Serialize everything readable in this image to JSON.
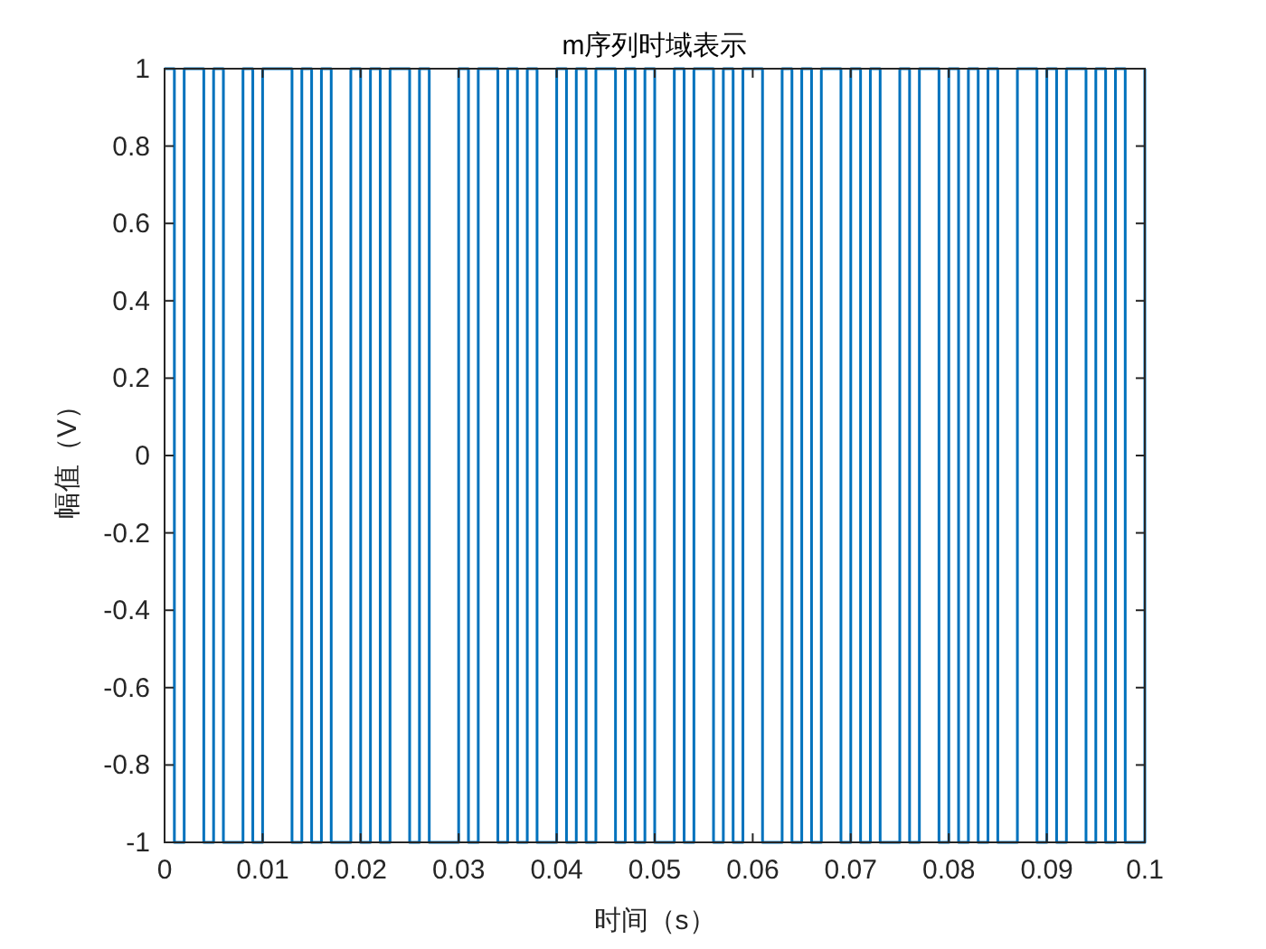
{
  "chart_data": {
    "type": "step",
    "title": "m序列时域表示",
    "xlabel": "时间（s）",
    "ylabel": "幅值（V）",
    "x": [
      0,
      0.001,
      0.002,
      0.003,
      0.004,
      0.005,
      0.006,
      0.007,
      0.008,
      0.009,
      0.01,
      0.011,
      0.012,
      0.013,
      0.014,
      0.015,
      0.016,
      0.017,
      0.018,
      0.019,
      0.02,
      0.021,
      0.022,
      0.023,
      0.024,
      0.025,
      0.026,
      0.027,
      0.028,
      0.029,
      0.03,
      0.031,
      0.032,
      0.033,
      0.034,
      0.035,
      0.036,
      0.037,
      0.038,
      0.039,
      0.04,
      0.041,
      0.042,
      0.043,
      0.044,
      0.045,
      0.046,
      0.047,
      0.048,
      0.049,
      0.05,
      0.051,
      0.052,
      0.053,
      0.054,
      0.055,
      0.056,
      0.057,
      0.058,
      0.059,
      0.06,
      0.061,
      0.062,
      0.063,
      0.064,
      0.065,
      0.066,
      0.067,
      0.068,
      0.069,
      0.07,
      0.071,
      0.072,
      0.073,
      0.074,
      0.075,
      0.076,
      0.077,
      0.078,
      0.079,
      0.08,
      0.081,
      0.082,
      0.083,
      0.084,
      0.085,
      0.086,
      0.087,
      0.088,
      0.089,
      0.09,
      0.091,
      0.092,
      0.093,
      0.094,
      0.095,
      0.096,
      0.097,
      0.098,
      0.099,
      0.1
    ],
    "series": [
      {
        "color": "#0072bd",
        "values": [
          1,
          -1,
          1,
          1,
          -1,
          1,
          -1,
          -1,
          1,
          -1,
          1,
          1,
          1,
          -1,
          1,
          -1,
          1,
          -1,
          -1,
          1,
          -1,
          1,
          -1,
          1,
          1,
          -1,
          1,
          -1,
          -1,
          -1,
          1,
          -1,
          1,
          1,
          -1,
          1,
          -1,
          1,
          -1,
          -1,
          1,
          -1,
          1,
          -1,
          1,
          1,
          -1,
          1,
          -1,
          1,
          -1,
          -1,
          1,
          -1,
          1,
          1,
          -1,
          1,
          -1,
          1,
          1,
          -1,
          -1,
          1,
          -1,
          1,
          -1,
          1,
          1,
          -1,
          1,
          -1,
          1,
          -1,
          -1,
          1,
          -1,
          1,
          1,
          -1,
          1,
          -1,
          1,
          -1,
          1,
          -1,
          -1,
          1,
          1,
          -1,
          1,
          -1,
          1,
          1,
          -1,
          1,
          -1,
          1,
          -1,
          -1,
          1
        ]
      }
    ],
    "xlim": [
      0,
      0.1
    ],
    "xticks": [
      0,
      0.01,
      0.02,
      0.03,
      0.04,
      0.05,
      0.06,
      0.07,
      0.08,
      0.09,
      0.1
    ],
    "ylim": [
      -1,
      1
    ],
    "yticks": [
      -1,
      -0.8,
      -0.6,
      -0.4,
      -0.2,
      0,
      0.2,
      0.4,
      0.6,
      0.8,
      1
    ],
    "grid": false
  }
}
